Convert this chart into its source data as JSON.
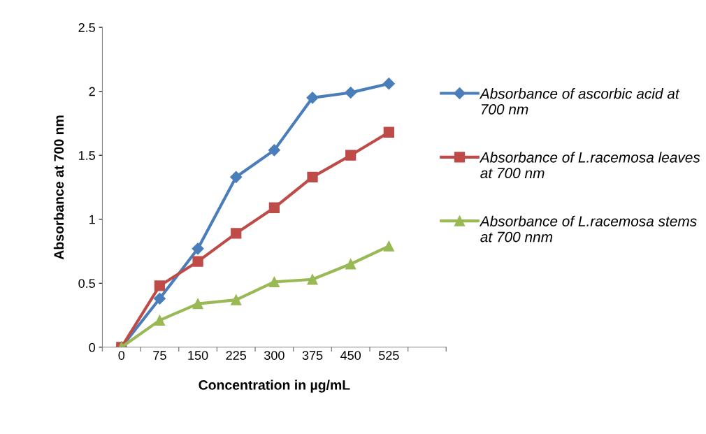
{
  "chart_data": {
    "type": "line",
    "xlabel": "Concentration in µg/mL",
    "ylabel": "Absorbance at 700 nm",
    "categories": [
      "0",
      "75",
      "150",
      "225",
      "300",
      "375",
      "450",
      "525",
      null
    ],
    "series": [
      {
        "name": "Absorbance of ascorbic acid at 700 nm",
        "color": "#4a7ebb",
        "marker": "diamond",
        "values": [
          0,
          0.38,
          0.77,
          1.33,
          1.54,
          1.95,
          1.99,
          2.06,
          null
        ]
      },
      {
        "name": "Absorbance of L.racemosa leaves at 700 nm",
        "color": "#be4b48",
        "marker": "square",
        "values": [
          0,
          0.48,
          0.67,
          0.89,
          1.09,
          1.33,
          1.5,
          1.68,
          null
        ]
      },
      {
        "name": "Absorbance of L.racemosa stems at 700 nnm",
        "color": "#98b954",
        "marker": "triangle",
        "values": [
          0,
          0.21,
          0.34,
          0.37,
          0.51,
          0.53,
          0.65,
          0.79,
          null
        ]
      }
    ],
    "ylim": [
      0,
      2.5
    ],
    "yticks": [
      0,
      0.5,
      1,
      1.5,
      2,
      2.5
    ],
    "grid": false,
    "legend": "right",
    "line_style": "solid"
  }
}
